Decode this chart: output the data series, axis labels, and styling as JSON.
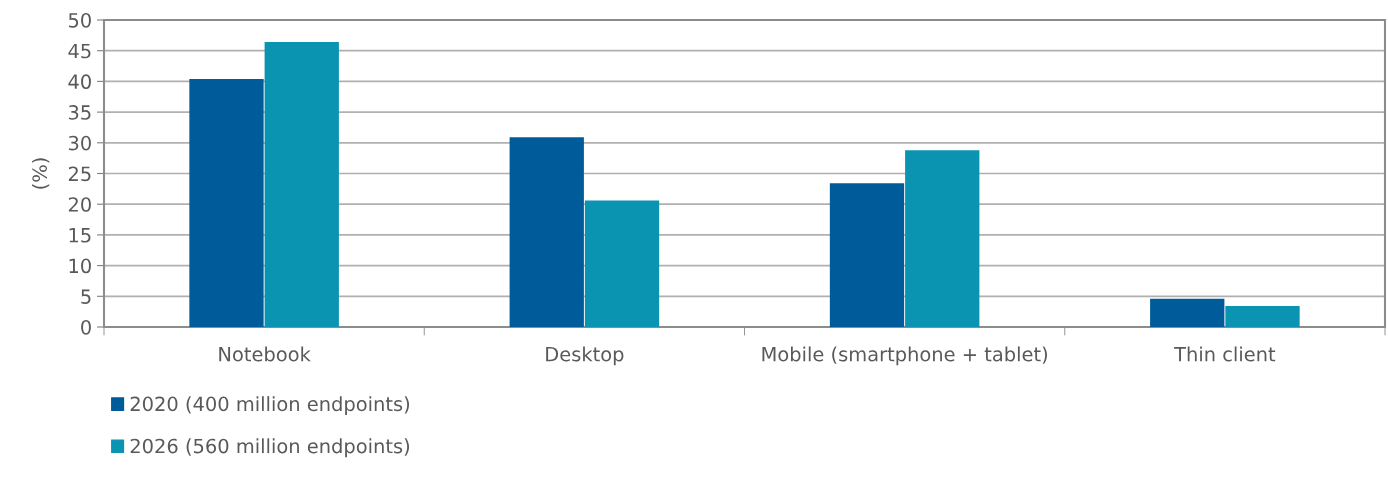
{
  "chart_data": {
    "type": "bar",
    "ylabel": "(%)",
    "categories": [
      "Notebook",
      "Desktop",
      "Mobile (smartphone + tablet)",
      "Thin client"
    ],
    "series": [
      {
        "name": "2020 (400 million endpoints)",
        "color": "#005b9a",
        "values": [
          40.4,
          30.9,
          23.4,
          4.6
        ]
      },
      {
        "name": "2026 (560 million endpoints)",
        "color": "#0a94b2",
        "values": [
          46.4,
          20.6,
          28.8,
          3.4
        ]
      }
    ],
    "ylim": [
      0,
      50
    ],
    "yticks": [
      0,
      5,
      10,
      15,
      20,
      25,
      30,
      35,
      40,
      45,
      50
    ],
    "grid": "y",
    "legend": "bottom left"
  }
}
